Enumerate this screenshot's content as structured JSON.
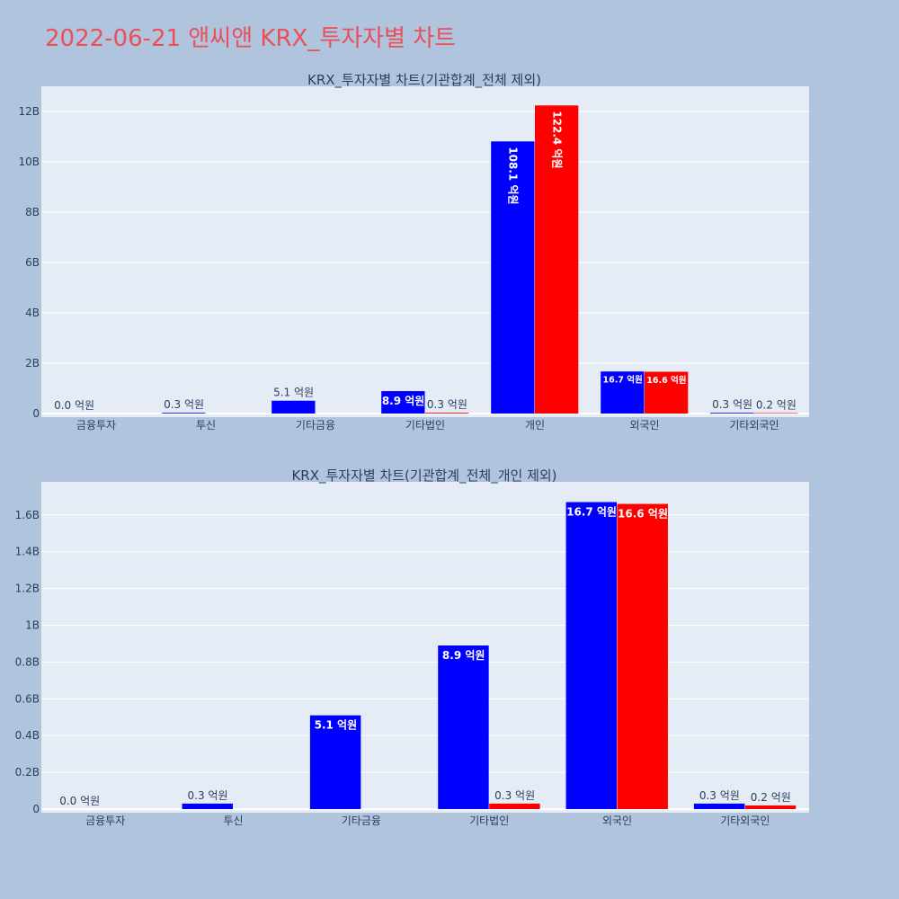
{
  "page_title": "2022-06-21 앤씨앤 KRX_투자자별 차트",
  "colors": {
    "background": "#b0c4de",
    "plot_bg": "#e5ecf6",
    "title": "#e8505b",
    "series_a": "#0000ff",
    "series_b": "#ff0000"
  },
  "chart_data": [
    {
      "type": "bar",
      "title": "KRX_투자자별 차트(기관합계_전체 제외)",
      "categories": [
        "금융투자",
        "투신",
        "기타금융",
        "기타법인",
        "개인",
        "외국인",
        "기타외국인"
      ],
      "ylim": [
        0,
        13000000000
      ],
      "yticks": [
        0,
        2000000000,
        4000000000,
        6000000000,
        8000000000,
        10000000000,
        12000000000
      ],
      "ytick_labels": [
        "0",
        "2B",
        "4B",
        "6B",
        "8B",
        "10B",
        "12B"
      ],
      "grid": true,
      "series": [
        {
          "color": "#0000ff",
          "values": [
            0,
            30000000,
            510000000,
            890000000,
            10810000000,
            1670000000,
            30000000
          ],
          "labels": [
            "0.0 억원",
            "0.3 억원",
            "5.1 억원",
            "8.9 억원",
            "108.1 억원",
            "16.7 억원",
            "0.3 억원"
          ]
        },
        {
          "color": "#ff0000",
          "values": [
            null,
            null,
            null,
            30000000,
            12240000000,
            1660000000,
            20000000
          ],
          "labels": [
            null,
            null,
            null,
            "0.3 억원",
            "122.4 억원",
            "16.6 억원",
            "0.2 억원"
          ]
        }
      ]
    },
    {
      "type": "bar",
      "title": "KRX_투자자별 차트(기관합계_전체_개인 제외)",
      "categories": [
        "금융투자",
        "투신",
        "기타금융",
        "기타법인",
        "외국인",
        "기타외국인"
      ],
      "ylim": [
        0,
        1780000000
      ],
      "yticks": [
        0,
        200000000,
        400000000,
        600000000,
        800000000,
        1000000000,
        1200000000,
        1400000000,
        1600000000
      ],
      "ytick_labels": [
        "0",
        "0.2B",
        "0.4B",
        "0.6B",
        "0.8B",
        "1B",
        "1.2B",
        "1.4B",
        "1.6B"
      ],
      "grid": true,
      "series": [
        {
          "color": "#0000ff",
          "values": [
            0,
            30000000,
            510000000,
            890000000,
            1670000000,
            30000000
          ],
          "labels": [
            "0.0 억원",
            "0.3 억원",
            "5.1 억원",
            "8.9 억원",
            "16.7 억원",
            "0.3 억원"
          ]
        },
        {
          "color": "#ff0000",
          "values": [
            null,
            null,
            null,
            30000000,
            1660000000,
            20000000
          ],
          "labels": [
            null,
            null,
            null,
            "0.3 억원",
            "16.6 억원",
            "0.2 억원"
          ]
        }
      ]
    }
  ]
}
